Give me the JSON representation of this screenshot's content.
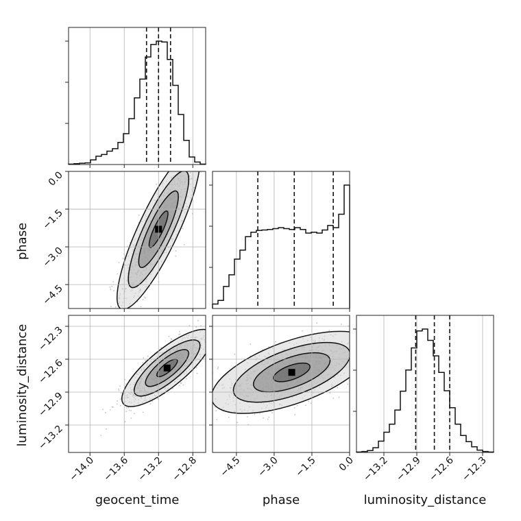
{
  "chart_data": {
    "type": "corner",
    "parameters": [
      "geocent_time",
      "phase",
      "luminosity_distance"
    ],
    "axis_labels": {
      "geocent_time": "geocent_time",
      "phase": "phase",
      "luminosity_distance": "luminosity_distance"
    },
    "ranges": {
      "geocent_time": [
        -14.25,
        -12.65
      ],
      "phase": [
        -5.45,
        0.0
      ],
      "luminosity_distance": [
        -13.45,
        -12.2
      ]
    },
    "ticks": {
      "geocent_time": [
        "-14.0",
        "-13.6",
        "-13.2",
        "-12.8"
      ],
      "phase": [
        "-4.5",
        "-3.0",
        "-1.5",
        "0.0"
      ],
      "luminosity_distance": [
        "-13.2",
        "-12.9",
        "-12.6",
        "-12.3"
      ]
    },
    "quantiles": {
      "geocent_time": [
        -13.34,
        -13.2,
        -13.06
      ],
      "phase": [
        -3.65,
        -2.2,
        -0.65
      ],
      "luminosity_distance": [
        -12.91,
        -12.74,
        -12.6
      ]
    },
    "histograms": {
      "geocent_time": [
        1,
        2,
        3,
        4,
        11,
        20,
        24,
        32,
        38,
        53,
        74,
        110,
        160,
        205,
        258,
        288,
        296,
        294,
        252,
        190,
        120,
        58,
        18,
        6,
        1
      ],
      "phase": [
        10,
        18,
        49,
        75,
        110,
        130,
        160,
        170,
        174,
        175,
        176,
        178,
        180,
        178,
        176,
        180,
        176,
        168,
        170,
        168,
        175,
        185,
        180,
        210,
        275
      ],
      "luminosity_distance": [
        1,
        2,
        4,
        10,
        24,
        43,
        60,
        90,
        130,
        175,
        222,
        258,
        262,
        238,
        205,
        170,
        131,
        95,
        60,
        36,
        23,
        12,
        5,
        2,
        1
      ]
    },
    "joint": [
      {
        "x": "geocent_time",
        "y": "phase",
        "mean": [
          -13.2,
          -2.3
        ],
        "std": [
          0.22,
          1.45
        ],
        "rho": 0.85
      },
      {
        "x": "geocent_time",
        "y": "luminosity_distance",
        "mean": [
          -13.1,
          -12.68
        ],
        "std": [
          0.24,
          0.16
        ],
        "rho": 0.8
      },
      {
        "x": "phase",
        "y": "luminosity_distance",
        "mean": [
          -2.3,
          -12.72
        ],
        "std": [
          1.45,
          0.17
        ],
        "rho": 0.6
      }
    ],
    "grid": true
  }
}
